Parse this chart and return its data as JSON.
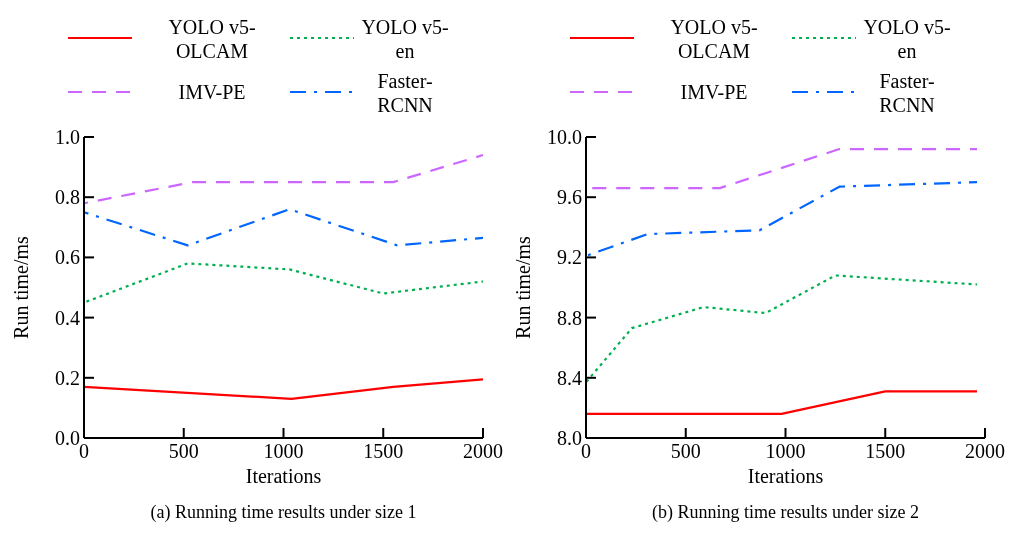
{
  "chart_data": [
    {
      "type": "line",
      "title": "(a) Running time results under size 1",
      "xlabel": "Iterations",
      "ylabel": "Run time/ms",
      "xlim": [
        0,
        2000
      ],
      "xticks": [
        0,
        500,
        1000,
        1500,
        2000
      ],
      "ylim": [
        0,
        1.0
      ],
      "yticks": [
        {
          "value": 0,
          "label": "0.0"
        },
        0.2,
        0.4,
        0.6,
        0.8,
        {
          "value": 1.0,
          "label": "1.0"
        }
      ],
      "grid": false,
      "legend": "top",
      "marker": "none",
      "series": [
        {
          "name": "YOLO v5-OLCAM",
          "color": "#ff0000",
          "line_style": "solid",
          "x": [
            0,
            1040,
            1550,
            2000
          ],
          "values": [
            0.17,
            0.13,
            0.17,
            0.195
          ]
        },
        {
          "name": "YOLO v5-en",
          "color": "#00b050",
          "line_style": "dotted",
          "x": [
            0,
            520,
            1030,
            1500,
            2000
          ],
          "values": [
            0.45,
            0.58,
            0.56,
            0.48,
            0.52
          ]
        },
        {
          "name": "IMV-PE",
          "color": "#cc66ff",
          "line_style": "dashed",
          "x": [
            0,
            545,
            1550,
            2000
          ],
          "values": [
            0.78,
            0.85,
            0.85,
            0.94
          ]
        },
        {
          "name": "Faster-RCNN",
          "color": "#0066ff",
          "line_style": "dashdot",
          "x": [
            0,
            520,
            1030,
            1570,
            2000
          ],
          "values": [
            0.75,
            0.64,
            0.76,
            0.64,
            0.665
          ]
        }
      ]
    },
    {
      "type": "line",
      "title": "(b) Running time results under size 2",
      "xlabel": "Iterations",
      "ylabel": "Run time/ms",
      "xlim": [
        0,
        2000
      ],
      "xticks": [
        0,
        500,
        1000,
        1500,
        2000
      ],
      "ylim": [
        8.0,
        10.0
      ],
      "yticks": [
        {
          "value": 8.0,
          "label": "8.0"
        },
        8.4,
        8.8,
        9.2,
        9.6,
        {
          "value": 10.0,
          "label": "10.0"
        }
      ],
      "grid": false,
      "legend": "top",
      "marker": "none",
      "series": [
        {
          "name": "YOLO v5-OLCAM",
          "color": "#ff0000",
          "line_style": "solid",
          "x": [
            0,
            980,
            1500,
            1960
          ],
          "values": [
            8.16,
            8.16,
            8.31,
            8.31
          ]
        },
        {
          "name": "YOLO v5-en",
          "color": "#00b050",
          "line_style": "dotted",
          "x": [
            0,
            230,
            590,
            900,
            1250,
            1960
          ],
          "values": [
            8.37,
            8.73,
            8.87,
            8.83,
            9.08,
            9.02
          ]
        },
        {
          "name": "IMV-PE",
          "color": "#cc66ff",
          "line_style": "dashed",
          "x": [
            0,
            670,
            1270,
            1960
          ],
          "values": [
            9.66,
            9.66,
            9.92,
            9.92
          ]
        },
        {
          "name": "Faster-RCNN",
          "color": "#0066ff",
          "line_style": "dashdot",
          "x": [
            0,
            310,
            870,
            1270,
            1960
          ],
          "values": [
            9.21,
            9.355,
            9.38,
            9.67,
            9.7
          ]
        }
      ]
    }
  ]
}
